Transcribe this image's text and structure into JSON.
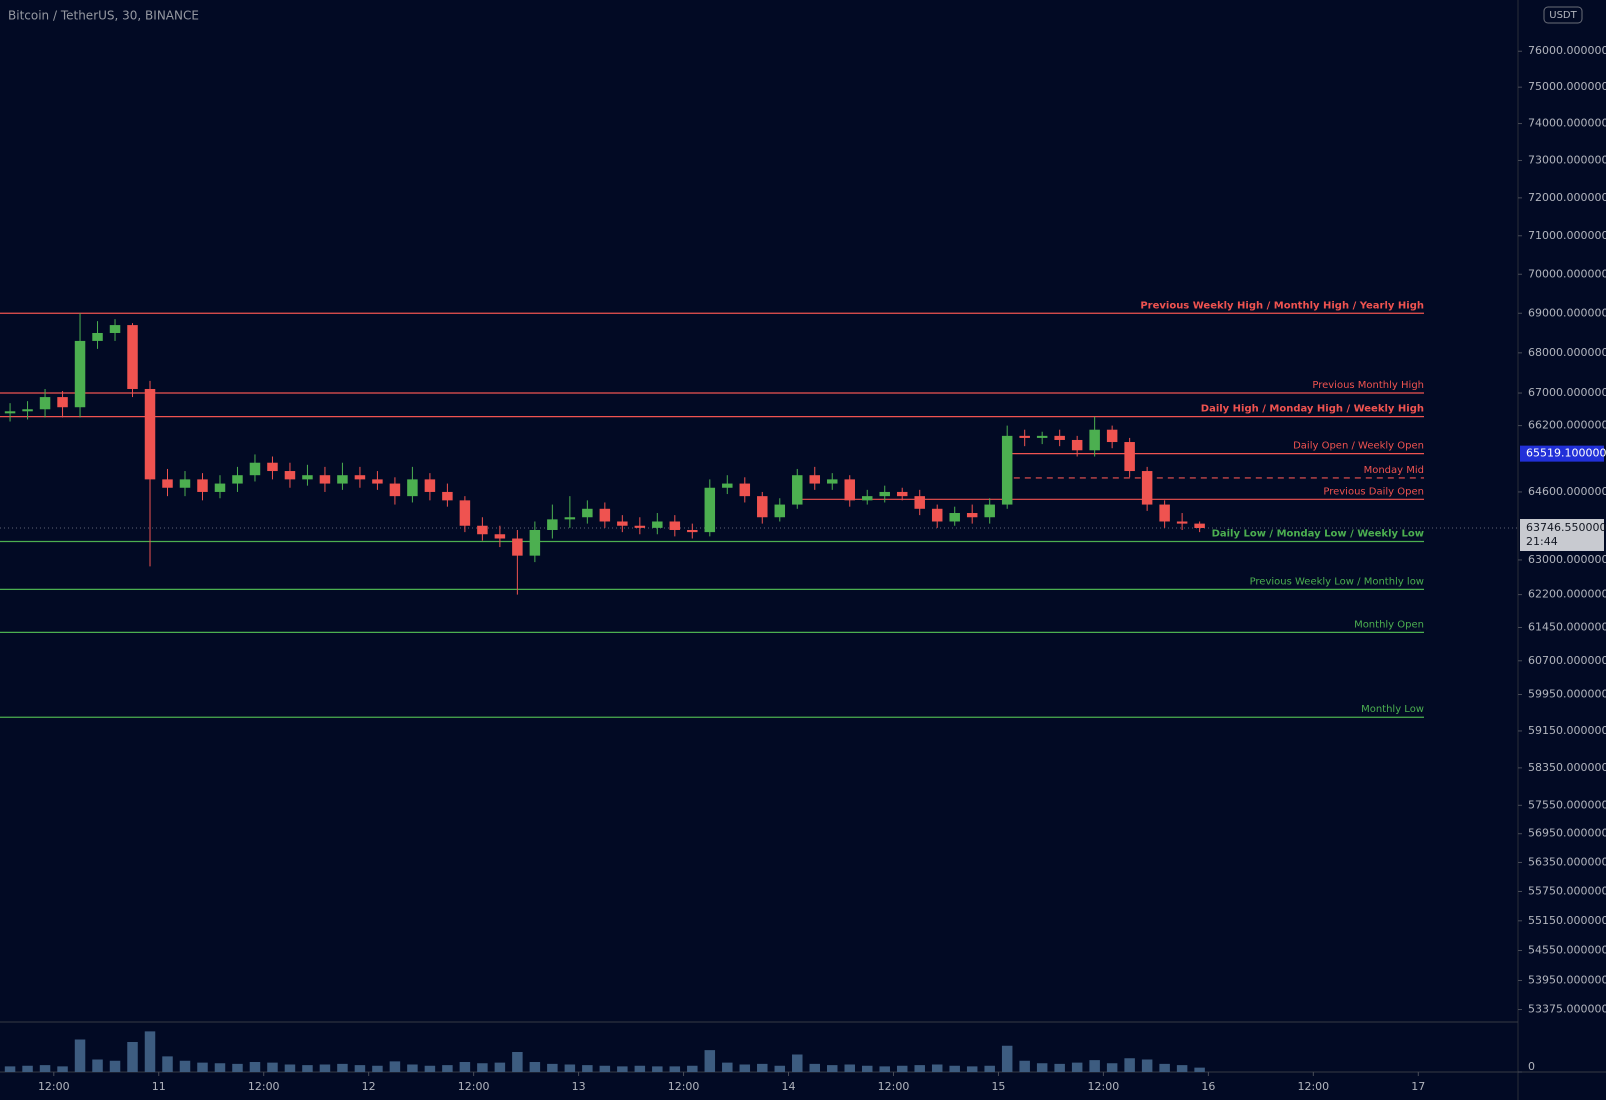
{
  "chart_data": {
    "type": "candlestick",
    "title": "Bitcoin / TetherUS, 30, BINANCE",
    "currency": "USDT",
    "log_scale": true,
    "grid": false,
    "xlim": [
      5.85,
      179.4
    ],
    "xticks": [
      {
        "value": 12,
        "label": "12:00"
      },
      {
        "value": 24,
        "label": "11"
      },
      {
        "value": 36,
        "label": "12:00"
      },
      {
        "value": 48,
        "label": "12"
      },
      {
        "value": 60,
        "label": "12:00"
      },
      {
        "value": 72,
        "label": "13"
      },
      {
        "value": 84,
        "label": "12:00"
      },
      {
        "value": 96,
        "label": "14"
      },
      {
        "value": 108,
        "label": "12:00"
      },
      {
        "value": 120,
        "label": "15"
      },
      {
        "value": 132,
        "label": "12:00"
      },
      {
        "value": 144,
        "label": "16"
      },
      {
        "value": 156,
        "label": "12:00"
      },
      {
        "value": 168,
        "label": "17"
      }
    ],
    "ylim": [
      53130,
      77450
    ],
    "yticks": [
      {
        "value": 76000,
        "label": "76000.000000"
      },
      {
        "value": 75000,
        "label": "75000.000000"
      },
      {
        "value": 74000,
        "label": "74000.000000"
      },
      {
        "value": 73000,
        "label": "73000.000000"
      },
      {
        "value": 72000,
        "label": "72000.000000"
      },
      {
        "value": 71000,
        "label": "71000.000000"
      },
      {
        "value": 70000,
        "label": "70000.000000"
      },
      {
        "value": 69000,
        "label": "69000.000000"
      },
      {
        "value": 68000,
        "label": "68000.000000"
      },
      {
        "value": 67000,
        "label": "67000.000000"
      },
      {
        "value": 66200,
        "label": "66200.000000"
      },
      {
        "value": 64600,
        "label": "64600.000000"
      },
      {
        "value": 63000,
        "label": "63000.000000"
      },
      {
        "value": 62200,
        "label": "62200.000000"
      },
      {
        "value": 61450,
        "label": "61450.000000"
      },
      {
        "value": 60700,
        "label": "60700.000000"
      },
      {
        "value": 59950,
        "label": "59950.000000"
      },
      {
        "value": 59150,
        "label": "59150.000000"
      },
      {
        "value": 58350,
        "label": "58350.000000"
      },
      {
        "value": 57550,
        "label": "57550.000000"
      },
      {
        "value": 56950,
        "label": "56950.000000"
      },
      {
        "value": 56350,
        "label": "56350.000000"
      },
      {
        "value": 55750,
        "label": "55750.000000"
      },
      {
        "value": 55150,
        "label": "55150.000000"
      },
      {
        "value": 54550,
        "label": "54550.000000"
      },
      {
        "value": 53950,
        "label": "53950.000000"
      },
      {
        "value": 53375,
        "label": "53375.000000"
      }
    ],
    "candles": {
      "up_color": "#4caf50",
      "down_color": "#ef5350",
      "x": [
        7,
        9,
        11,
        13,
        15,
        17,
        19,
        21,
        23,
        25,
        27,
        29,
        31,
        33,
        35,
        37,
        39,
        41,
        43,
        45,
        47,
        49,
        51,
        53,
        55,
        57,
        59,
        61,
        63,
        65,
        67,
        69,
        71,
        73,
        75,
        77,
        79,
        81,
        83,
        85,
        87,
        89,
        91,
        93,
        95,
        97,
        99,
        101,
        103,
        105,
        107,
        109,
        111,
        113,
        115,
        117,
        119,
        121,
        123,
        125,
        127,
        129,
        131,
        133,
        135,
        137,
        139,
        141,
        143
      ],
      "open": [
        66500,
        66550,
        66600,
        66900,
        66650,
        68300,
        68500,
        68700,
        67100,
        64900,
        64700,
        64900,
        64600,
        64800,
        65000,
        65300,
        65100,
        64900,
        65000,
        64800,
        65000,
        64900,
        64800,
        64500,
        64900,
        64600,
        64400,
        63800,
        63600,
        63500,
        63100,
        63700,
        63950,
        64000,
        64200,
        63900,
        63800,
        63750,
        63900,
        63700,
        63650,
        64700,
        64800,
        64500,
        64000,
        64300,
        65000,
        64800,
        64900,
        64400,
        64500,
        64600,
        64500,
        64200,
        63900,
        64100,
        64000,
        64300,
        65950,
        65900,
        65950,
        65850,
        65600,
        66100,
        65800,
        65100,
        64300,
        63900,
        63850
      ],
      "high": [
        66750,
        66800,
        67100,
        67050,
        69000,
        68800,
        68850,
        68750,
        67300,
        65150,
        65100,
        65050,
        65000,
        65200,
        65500,
        65450,
        65300,
        65250,
        65200,
        65300,
        65200,
        65100,
        64950,
        65200,
        65050,
        64800,
        64500,
        64000,
        63800,
        63700,
        63900,
        64300,
        64500,
        64400,
        64350,
        64050,
        64000,
        64100,
        64050,
        63850,
        64900,
        65000,
        64950,
        64600,
        64450,
        65150,
        65200,
        65050,
        65000,
        64650,
        64750,
        64700,
        64650,
        64300,
        64250,
        64300,
        64450,
        66200,
        66100,
        66050,
        66100,
        65950,
        66420,
        66200,
        65900,
        65200,
        64400,
        64100,
        63900
      ],
      "low": [
        66300,
        66350,
        66400,
        66400,
        66400,
        68100,
        68300,
        66900,
        62850,
        64500,
        64500,
        64400,
        64450,
        64600,
        64850,
        64900,
        64700,
        64750,
        64600,
        64650,
        64700,
        64650,
        64300,
        64350,
        64400,
        64250,
        63650,
        63450,
        63300,
        62200,
        62950,
        63500,
        63750,
        63850,
        63750,
        63650,
        63600,
        63600,
        63550,
        63500,
        63550,
        64550,
        64350,
        63850,
        63900,
        64200,
        64650,
        64650,
        64250,
        64300,
        64350,
        64400,
        64050,
        63750,
        63800,
        63850,
        63850,
        64200,
        65700,
        65750,
        65700,
        65450,
        65450,
        65650,
        64950,
        64150,
        63750,
        63700,
        63650
      ],
      "close": [
        66550,
        66600,
        66900,
        66650,
        68300,
        68500,
        68700,
        67100,
        64900,
        64700,
        64900,
        64600,
        64800,
        65000,
        65300,
        65100,
        64900,
        65000,
        64800,
        65000,
        64900,
        64800,
        64500,
        64900,
        64600,
        64400,
        63800,
        63600,
        63500,
        63100,
        63700,
        63950,
        64000,
        64200,
        63900,
        63800,
        63750,
        63900,
        63700,
        63650,
        64700,
        64800,
        64500,
        64000,
        64300,
        65000,
        64800,
        64900,
        64400,
        64500,
        64600,
        64500,
        64200,
        63900,
        64100,
        64000,
        64300,
        65950,
        65900,
        65950,
        65850,
        65600,
        66100,
        65800,
        65100,
        64300,
        63900,
        63850,
        63746.55
      ]
    },
    "volume": {
      "color": "#3d5c80",
      "ylim": [
        0,
        8000
      ],
      "yticks": [
        0
      ],
      "values": [
        900,
        1000,
        1100,
        900,
        5200,
        2000,
        1800,
        4800,
        6500,
        2500,
        1800,
        1500,
        1400,
        1300,
        1600,
        1500,
        1200,
        1100,
        1200,
        1300,
        1100,
        1000,
        1700,
        1200,
        1000,
        1100,
        1600,
        1400,
        1500,
        3200,
        1600,
        1300,
        1200,
        1100,
        1000,
        900,
        1000,
        900,
        900,
        1000,
        3500,
        1500,
        1200,
        1300,
        1000,
        2800,
        1300,
        1100,
        1200,
        1000,
        900,
        1000,
        1100,
        1200,
        1000,
        900,
        1000,
        4200,
        1800,
        1400,
        1300,
        1500,
        1900,
        1400,
        2200,
        2000,
        1300,
        1100,
        700
      ]
    },
    "last_price": {
      "value": 63746.55,
      "label": "63746.550000",
      "countdown": "21:44"
    },
    "levels": [
      {
        "name": "Previous Weekly High / Monthly High / Yearly High",
        "value": 69000,
        "color": "#ef5350",
        "bold": true
      },
      {
        "name": "Previous Monthly High",
        "value": 67000,
        "color": "#ef5350"
      },
      {
        "name": "Daily High / Monday High / Weekly High",
        "value": 66420,
        "color": "#ef5350",
        "bold": true
      },
      {
        "name": "Daily Open / Weekly Open",
        "value": 65519.1,
        "price_label": "65519.100000",
        "color": "#ef5350",
        "start": 120.5
      },
      {
        "name": "Monday Mid",
        "value": 64935,
        "color": "#ef5350",
        "start": 120.5,
        "dashed": true
      },
      {
        "name": "Previous Daily Open",
        "value": 64425,
        "color": "#ef5350",
        "start": 96.5
      },
      {
        "name": "Daily Low / Monday Low / Weekly Low",
        "value": 63430,
        "color": "#4caf50",
        "bold": true
      },
      {
        "name": "Previous Weekly Low / Monthly low",
        "value": 62320,
        "color": "#4caf50"
      },
      {
        "name": "Monthly Open",
        "value": 61340,
        "color": "#4caf50"
      },
      {
        "name": "Monthly Low",
        "value": 59450,
        "color": "#4caf50"
      }
    ]
  }
}
